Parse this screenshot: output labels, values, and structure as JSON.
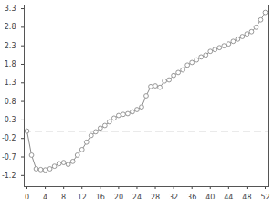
{
  "chart_data": {
    "type": "line",
    "x": [
      0,
      1,
      2,
      3,
      4,
      5,
      6,
      7,
      8,
      9,
      10,
      11,
      12,
      13,
      14,
      15,
      16,
      17,
      18,
      19,
      20,
      21,
      22,
      23,
      24,
      25,
      26,
      27,
      28,
      29,
      30,
      31,
      32,
      33,
      34,
      35,
      36,
      37,
      38,
      39,
      40,
      41,
      42,
      43,
      44,
      45,
      46,
      47,
      48,
      49,
      50,
      51,
      52
    ],
    "series": [
      {
        "color": "#8c8c8c",
        "marker": "circle",
        "line_style": "solid",
        "values": [
          0.0,
          -0.65,
          -1.02,
          -1.04,
          -1.05,
          -1.02,
          -0.95,
          -0.88,
          -0.85,
          -0.9,
          -0.82,
          -0.65,
          -0.5,
          -0.3,
          -0.12,
          -0.02,
          0.08,
          0.15,
          0.25,
          0.35,
          0.42,
          0.45,
          0.47,
          0.52,
          0.58,
          0.65,
          0.95,
          1.2,
          1.22,
          1.18,
          1.35,
          1.38,
          1.5,
          1.58,
          1.65,
          1.78,
          1.85,
          1.92,
          2.0,
          2.05,
          2.15,
          2.2,
          2.25,
          2.3,
          2.35,
          2.42,
          2.48,
          2.55,
          2.62,
          2.68,
          2.8,
          3.0,
          3.2
        ]
      }
    ],
    "reference_line": 0,
    "xlim": [
      -0.6,
      52.6
    ],
    "xticks": [
      0,
      4,
      8,
      12,
      16,
      20,
      24,
      28,
      32,
      36,
      40,
      44,
      48,
      52
    ],
    "ylim": [
      -1.5,
      3.4
    ],
    "yticks": [
      -1.2,
      -0.7,
      -0.2,
      0.3,
      0.8,
      1.3,
      1.8,
      2.3,
      2.8,
      3.3
    ],
    "grid": false
  }
}
